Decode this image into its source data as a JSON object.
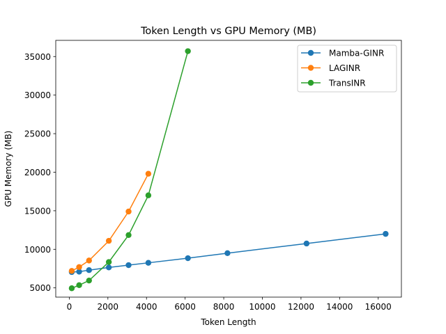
{
  "chart_data": {
    "type": "line",
    "title": "Token Length vs GPU Memory (MB)",
    "xlabel": "Token Length",
    "ylabel": "GPU Memory (MB)",
    "xlim": [
      -700,
      17200
    ],
    "ylim": [
      3800,
      37100
    ],
    "x_ticks": [
      0,
      2000,
      4000,
      6000,
      8000,
      10000,
      12000,
      14000,
      16000
    ],
    "y_ticks": [
      5000,
      10000,
      15000,
      20000,
      25000,
      30000,
      35000
    ],
    "grid": false,
    "legend_position": "top-right",
    "series": [
      {
        "name": "Mamba-GINR",
        "color": "#1f77b4",
        "x": [
          128,
          512,
          1024,
          2048,
          3072,
          4096,
          6144,
          8192,
          12288,
          16384
        ],
        "y": [
          7050,
          7100,
          7300,
          7650,
          7950,
          8250,
          8850,
          9500,
          10750,
          12000
        ]
      },
      {
        "name": "LAGINR",
        "color": "#ff7f0e",
        "x": [
          128,
          512,
          1024,
          2048,
          3072,
          4096
        ],
        "y": [
          7200,
          7700,
          8550,
          11100,
          14900,
          19800
        ]
      },
      {
        "name": "TransINR",
        "color": "#2ca02c",
        "x": [
          128,
          512,
          1024,
          2048,
          3072,
          4096,
          6144
        ],
        "y": [
          4950,
          5350,
          5950,
          8350,
          11850,
          17000,
          35700
        ]
      }
    ]
  }
}
